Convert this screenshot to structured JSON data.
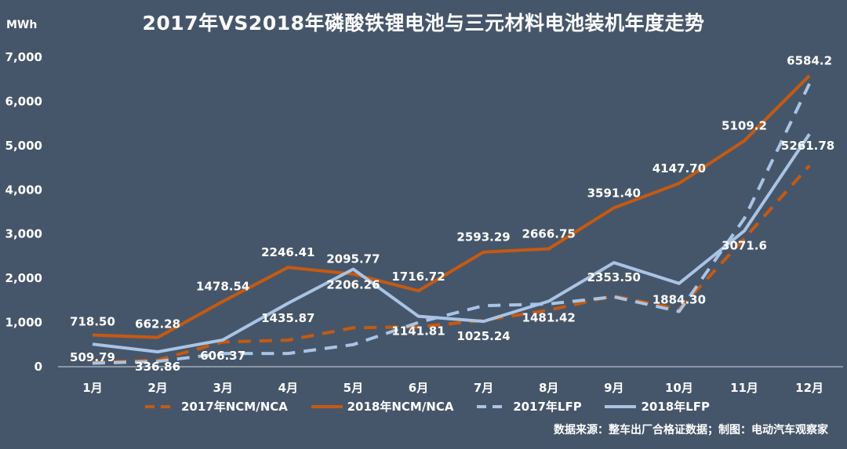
{
  "header": {
    "title": "2017年VS2018年磷酸铁锂电池与三元材料电池装机年度走势",
    "unit": "MWh"
  },
  "footer": {
    "source": "数据来源：整车出厂合格证数据；制图：电动汽车观察家"
  },
  "colors": {
    "background": "#46566a",
    "ncm": "#c55a11",
    "lfp": "#a9c4e4",
    "text": "#ffffff"
  },
  "chart_data": {
    "type": "line",
    "categories": [
      "1月",
      "2月",
      "3月",
      "4月",
      "5月",
      "6月",
      "7月",
      "8月",
      "9月",
      "10月",
      "11月",
      "12月"
    ],
    "ylim": [
      0,
      7000
    ],
    "yticks": [
      "0",
      "1,000",
      "2,000",
      "3,000",
      "4,000",
      "5,000",
      "6,000",
      "7,000"
    ],
    "ylabel": "MWh",
    "grid": false,
    "legend_position": "bottom",
    "series": [
      {
        "name": "2017年NCM/NCA",
        "style": "dashed",
        "color": "ncm",
        "values": [
          100,
          150,
          560,
          600,
          880,
          900,
          1050,
          1280,
          1600,
          1300,
          2900,
          4550
        ]
      },
      {
        "name": "2018年NCM/NCA",
        "style": "solid",
        "color": "ncm",
        "values": [
          718.5,
          662.28,
          1478.54,
          2246.41,
          2095.77,
          1716.72,
          2593.29,
          2666.75,
          3591.4,
          4147.7,
          5109.2,
          6584.2
        ],
        "labels": [
          "718.50",
          "662.28",
          "1478.54",
          "2246.41",
          "2095.77",
          "1716.72",
          "2593.29",
          "2666.75",
          "3591.40",
          "4147.70",
          "5109.2",
          "6584.2"
        ]
      },
      {
        "name": "2017年LFP",
        "style": "dashed",
        "color": "lfp",
        "values": [
          80,
          120,
          300,
          300,
          500,
          1000,
          1380,
          1420,
          1580,
          1250,
          3350,
          6400
        ]
      },
      {
        "name": "2018年LFP",
        "style": "solid",
        "color": "lfp",
        "values": [
          509.79,
          336.86,
          606.37,
          1435.87,
          2206.26,
          1141.81,
          1025.24,
          1481.42,
          2353.5,
          1884.3,
          3071.6,
          5261.78
        ],
        "labels": [
          "509.79",
          "336.86",
          "606.37",
          "1435.87",
          "2206.26",
          "1141.81",
          "1025.24",
          "1481.42",
          "2353.50",
          "1884.30",
          "3071.6",
          "5261.78"
        ]
      }
    ]
  }
}
